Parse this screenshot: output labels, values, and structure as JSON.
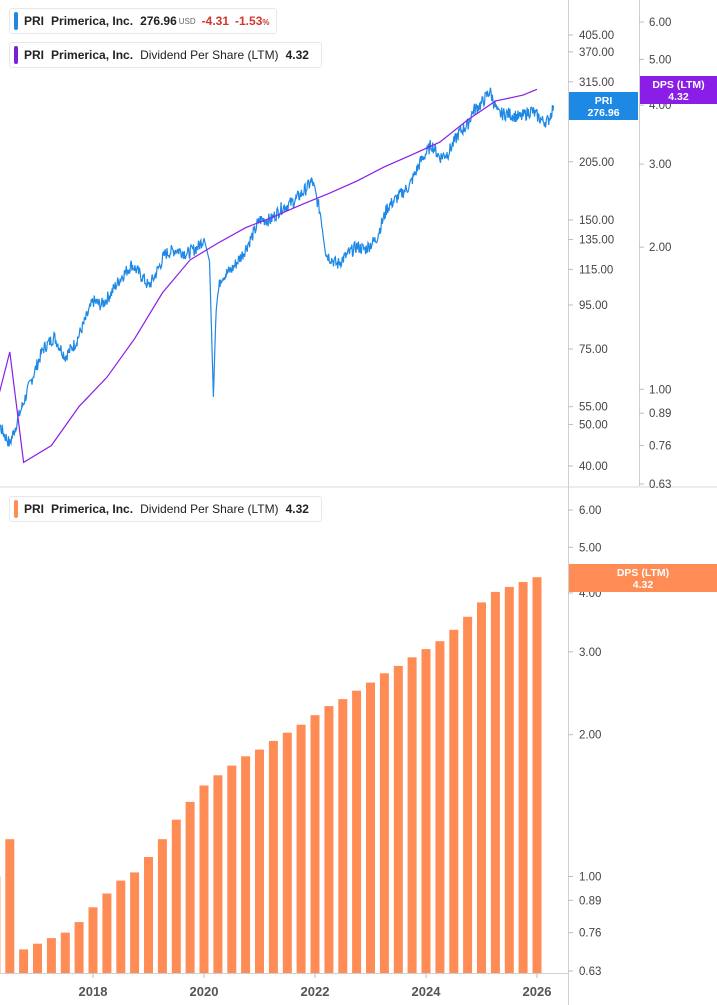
{
  "legends": {
    "price": {
      "ticker": "PRI",
      "name": "Primerica, Inc.",
      "value": "276.96",
      "unit": "USD",
      "change": "-4.31",
      "pct": "-1.53",
      "pct_sign": "%",
      "color": "#1e88e5"
    },
    "dps_top": {
      "ticker": "PRI",
      "name": "Primerica, Inc.",
      "metric": "Dividend Per Share (LTM)",
      "value": "4.32",
      "color": "#7b1fd9"
    },
    "dps_bottom": {
      "ticker": "PRI",
      "name": "Primerica, Inc.",
      "metric": "Dividend Per Share (LTM)",
      "value": "4.32",
      "color": "#ff8c55"
    }
  },
  "tags": {
    "price": {
      "line1": "PRI",
      "line2": "276.96",
      "color": "#1e88e5"
    },
    "dps_top": {
      "line1": "DPS (LTM)",
      "line2": "4.32",
      "color": "#8a1ee6"
    },
    "dps_bottom": {
      "line1": "DPS (LTM)",
      "line2": "4.32",
      "color": "#ff8c55"
    }
  },
  "chart_data": [
    {
      "type": "line",
      "series": [
        {
          "name": "Primerica, Inc.",
          "axis": "price",
          "color": "#1e88e5",
          "x": [
            2016.0,
            2016.3,
            2016.5,
            2016.7,
            2016.9,
            2017.1,
            2017.3,
            2017.5,
            2017.7,
            2017.9,
            2018.0,
            2018.15,
            2018.3,
            2018.5,
            2018.7,
            2018.9,
            2019.0,
            2019.1,
            2019.3,
            2019.5,
            2019.7,
            2019.9,
            2020.0,
            2020.1,
            2020.17,
            2020.22,
            2020.3,
            2020.5,
            2020.7,
            2020.9,
            2021.0,
            2021.2,
            2021.4,
            2021.6,
            2021.8,
            2021.95,
            2022.1,
            2022.2,
            2022.4,
            2022.6,
            2022.75,
            2022.9,
            2023.1,
            2023.3,
            2023.5,
            2023.7,
            2023.9,
            2024.1,
            2024.25,
            2024.4,
            2024.6,
            2024.75,
            2024.85,
            2025.0,
            2025.15,
            2025.3,
            2025.5,
            2025.7,
            2025.9,
            2026.1,
            2026.2,
            2026.3
          ],
          "y": [
            46,
            50,
            45,
            54,
            64,
            75,
            80,
            72,
            78,
            90,
            97,
            95,
            100,
            110,
            118,
            110,
            105,
            110,
            125,
            128,
            125,
            130,
            136,
            120,
            58,
            95,
            110,
            115,
            125,
            140,
            150,
            150,
            160,
            165,
            175,
            185,
            155,
            125,
            118,
            125,
            130,
            128,
            135,
            160,
            170,
            180,
            205,
            225,
            210,
            215,
            240,
            250,
            270,
            280,
            300,
            265,
            265,
            260,
            270,
            255,
            255,
            277
          ]
        },
        {
          "name": "Dividend Per Share (LTM)",
          "axis": "dps",
          "color": "#8a1ee6",
          "x": [
            2016.0,
            2016.25,
            2016.5,
            2016.75,
            2017.25,
            2017.75,
            2018.25,
            2018.75,
            2019.25,
            2019.75,
            2020.25,
            2020.75,
            2021.25,
            2021.75,
            2022.25,
            2022.75,
            2023.25,
            2023.75,
            2024.25,
            2024.75,
            2025.25,
            2025.75,
            2026.0
          ],
          "y": [
            0.64,
            0.92,
            1.2,
            0.7,
            0.76,
            0.92,
            1.06,
            1.28,
            1.6,
            1.88,
            2.04,
            2.2,
            2.32,
            2.46,
            2.6,
            2.76,
            2.96,
            3.14,
            3.34,
            3.72,
            4.08,
            4.2,
            4.32
          ]
        }
      ],
      "price_ticks": [
        40,
        50,
        55,
        75,
        95,
        115,
        135,
        150,
        205,
        315,
        370,
        405
      ],
      "dps_ticks": [
        0.63,
        0.76,
        0.89,
        1.0,
        2.0,
        3.0,
        4.0,
        5.0,
        6.0
      ],
      "price_range": [
        38,
        470
      ],
      "dps_range": [
        0.63,
        6.6
      ],
      "scale": "log"
    },
    {
      "type": "bar",
      "series": [
        {
          "name": "Dividend Per Share (LTM)",
          "color": "#ff8c55",
          "x": [
            2016.0,
            2016.25,
            2016.5,
            2016.75,
            2017.0,
            2017.25,
            2017.5,
            2017.75,
            2018.0,
            2018.25,
            2018.5,
            2018.75,
            2019.0,
            2019.25,
            2019.5,
            2019.75,
            2020.0,
            2020.25,
            2020.5,
            2020.75,
            2021.0,
            2021.25,
            2021.5,
            2021.75,
            2022.0,
            2022.25,
            2022.5,
            2022.75,
            2023.0,
            2023.25,
            2023.5,
            2023.75,
            2024.0,
            2024.25,
            2024.5,
            2024.75,
            2025.0,
            2025.25,
            2025.5,
            2025.75,
            2026.0
          ],
          "values": [
            0.72,
            1.0,
            1.2,
            0.7,
            0.72,
            0.74,
            0.76,
            0.8,
            0.86,
            0.92,
            0.98,
            1.02,
            1.1,
            1.2,
            1.32,
            1.44,
            1.56,
            1.64,
            1.72,
            1.8,
            1.86,
            1.94,
            2.02,
            2.1,
            2.2,
            2.3,
            2.38,
            2.48,
            2.58,
            2.7,
            2.8,
            2.92,
            3.04,
            3.16,
            3.34,
            3.56,
            3.82,
            4.02,
            4.12,
            4.22,
            4.32
          ]
        }
      ],
      "x_ticks": [
        "2018",
        "2020",
        "2022",
        "2024",
        "2026"
      ],
      "y_ticks": [
        0.63,
        0.76,
        0.89,
        1.0,
        2.0,
        3.0,
        4.0,
        5.0,
        6.0
      ],
      "y_range": [
        0.63,
        6.6
      ],
      "scale": "log"
    }
  ]
}
